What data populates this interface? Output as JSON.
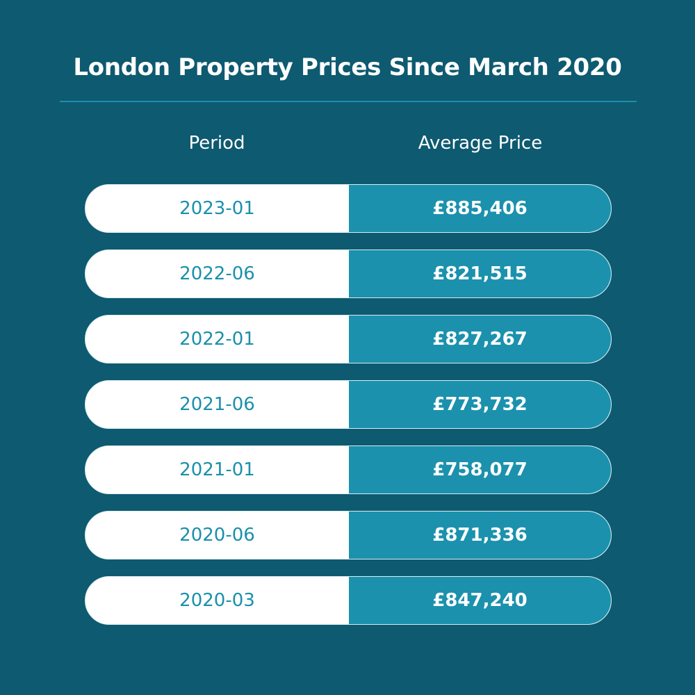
{
  "title": "London Property Prices Since March 2020",
  "table": {
    "headers": {
      "period": "Period",
      "price": "Average Price"
    },
    "rows": [
      {
        "period": "2023-01",
        "price": "£885,406"
      },
      {
        "period": "2022-06",
        "price": "£821,515"
      },
      {
        "period": "2022-01",
        "price": "£827,267"
      },
      {
        "period": "2021-06",
        "price": "£773,732"
      },
      {
        "period": "2021-01",
        "price": "£758,077"
      },
      {
        "period": "2020-06",
        "price": "£871,336"
      },
      {
        "period": "2020-03",
        "price": "£847,240"
      }
    ]
  },
  "colors": {
    "background": "#0e5a70",
    "accent": "#1b91ad",
    "period_text": "#1a90ab",
    "row_left_bg": "#ffffff"
  },
  "chart_data": {
    "type": "table",
    "title": "London Property Prices Since March 2020",
    "columns": [
      "Period",
      "Average Price"
    ],
    "categories": [
      "2023-01",
      "2022-06",
      "2022-01",
      "2021-06",
      "2021-01",
      "2020-06",
      "2020-03"
    ],
    "values": [
      885406,
      821515,
      827267,
      773732,
      758077,
      871336,
      847240
    ],
    "unit": "GBP",
    "xlabel": "Period",
    "ylabel": "Average Price"
  }
}
